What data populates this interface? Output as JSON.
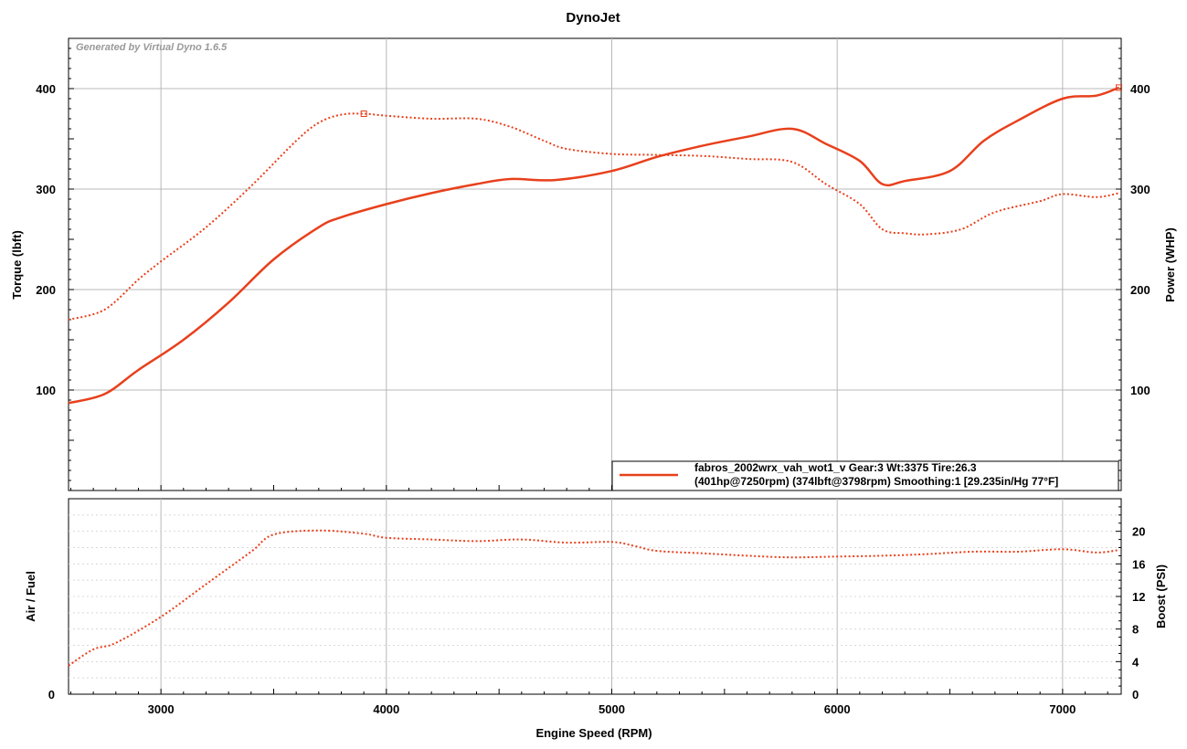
{
  "title": "DynoJet",
  "watermark": "Generated by Virtual Dyno 1.6.5",
  "colors": {
    "series": "#e8401c",
    "grid": "#b8b8b8",
    "grid_minor": "#d8d8d8",
    "frame": "#000000"
  },
  "chart_data": [
    {
      "type": "line",
      "panel": "top",
      "xlabel": "Engine Speed (RPM)",
      "ylabel": "Torque (lbft)",
      "y2label": "Power (WHP)",
      "xlim": [
        2590,
        7260
      ],
      "ylim": [
        0,
        450
      ],
      "y2lim": [
        0,
        450
      ],
      "xticks": [
        3000,
        4000,
        5000,
        6000,
        7000
      ],
      "yticks": [
        100,
        200,
        300,
        400
      ],
      "y2ticks": [
        100,
        200,
        300,
        400
      ],
      "grid": true,
      "legend_position": "bottom-right",
      "legend": {
        "line1": "fabros_2002wrx_vah_wot1_v  Gear:3  Wt:3375  Tire:26.3",
        "line2": "(401hp@7250rpm)  (374lbft@3798rpm)  Smoothing:1  [29.235in/Hg  77°F]"
      },
      "series": [
        {
          "style": "solid",
          "axis": "right",
          "x": [
            2590,
            2750,
            2900,
            3100,
            3300,
            3500,
            3700,
            3800,
            4000,
            4200,
            4400,
            4550,
            4750,
            5000,
            5200,
            5400,
            5600,
            5800,
            5950,
            6100,
            6200,
            6300,
            6500,
            6650,
            6800,
            7000,
            7150,
            7250
          ],
          "values": [
            87,
            96,
            120,
            150,
            187,
            230,
            262,
            272,
            285,
            296,
            305,
            310,
            309,
            318,
            332,
            343,
            352,
            360,
            345,
            328,
            305,
            308,
            318,
            348,
            368,
            390,
            393,
            401
          ]
        },
        {
          "style": "dotted",
          "axis": "left",
          "x": [
            2590,
            2750,
            2900,
            3000,
            3200,
            3400,
            3600,
            3700,
            3798,
            3900,
            4000,
            4200,
            4400,
            4550,
            4700,
            4800,
            5000,
            5200,
            5400,
            5600,
            5800,
            5950,
            6100,
            6200,
            6300,
            6400,
            6550,
            6700,
            6900,
            7000,
            7150,
            7250
          ],
          "values": [
            170,
            180,
            210,
            228,
            262,
            303,
            348,
            366,
            374,
            375,
            373,
            370,
            370,
            362,
            348,
            340,
            335,
            334,
            333,
            330,
            327,
            305,
            285,
            260,
            256,
            255,
            260,
            277,
            288,
            295,
            292,
            296
          ]
        }
      ]
    },
    {
      "type": "line",
      "panel": "bottom",
      "ylabel": "Air / Fuel",
      "y2label": "Boost (PSI)",
      "left_ticks": [
        "0"
      ],
      "xlim": [
        2590,
        7260
      ],
      "y2lim": [
        0,
        24
      ],
      "y2ticks": [
        0,
        4,
        8,
        12,
        16,
        20
      ],
      "grid": true,
      "series": [
        {
          "style": "dotted",
          "axis": "right",
          "x": [
            2590,
            2700,
            2800,
            3000,
            3200,
            3400,
            3500,
            3700,
            3900,
            4000,
            4200,
            4400,
            4600,
            4800,
            5000,
            5100,
            5200,
            5400,
            5600,
            5800,
            6000,
            6200,
            6400,
            6600,
            6800,
            7000,
            7150,
            7250
          ],
          "values": [
            3.5,
            5.5,
            6.3,
            9.5,
            13.5,
            17.5,
            19.6,
            20.1,
            19.7,
            19.2,
            19.0,
            18.8,
            19.0,
            18.6,
            18.7,
            18.2,
            17.6,
            17.3,
            17.0,
            16.8,
            16.9,
            17.0,
            17.2,
            17.5,
            17.5,
            17.8,
            17.4,
            17.7
          ]
        }
      ]
    }
  ]
}
